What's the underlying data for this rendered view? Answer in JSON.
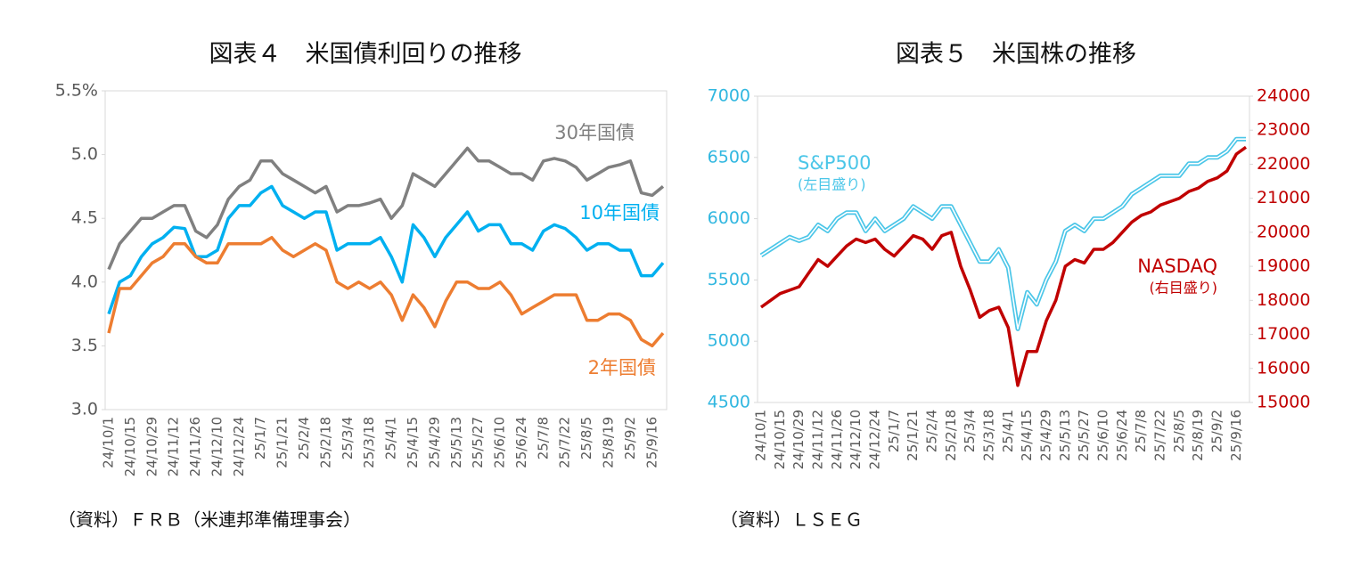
{
  "chart_data": [
    {
      "type": "line",
      "title": "図表４　米国債利回りの推移",
      "source": "（資料）ＦＲＢ（米連邦準備理事会）",
      "categories": [
        "24/10/1",
        null,
        "24/10/15",
        null,
        "24/10/29",
        null,
        "24/11/12",
        null,
        "24/11/26",
        null,
        "24/12/10",
        null,
        "24/12/24",
        null,
        "25/1/7",
        null,
        "25/1/21",
        null,
        "25/2/4",
        null,
        "25/2/18",
        null,
        "25/3/4",
        null,
        "25/3/18",
        null,
        "25/4/1",
        null,
        "25/4/15",
        null,
        "25/4/29",
        null,
        "25/5/13",
        null,
        "25/5/27",
        null,
        "25/6/10",
        null,
        "25/6/24",
        null,
        "25/7/8",
        null,
        "25/7/22",
        null,
        "25/8/5",
        null,
        "25/8/19",
        null,
        "25/9/2",
        null,
        "25/9/16",
        null
      ],
      "ylim": [
        3.0,
        5.5
      ],
      "yticks": [
        {
          "value": 3.0,
          "label": "3.0"
        },
        {
          "value": 3.5,
          "label": "3.5"
        },
        {
          "value": 4.0,
          "label": "4.0"
        },
        {
          "value": 4.5,
          "label": "4.5"
        },
        {
          "value": 5.0,
          "label": "5.0"
        },
        {
          "value": 5.5,
          "label": "5.5%"
        }
      ],
      "ytick_color": "#595959",
      "grid": false,
      "series": [
        {
          "name": "30年国債",
          "color": "#808080",
          "values": [
            4.1,
            4.3,
            4.4,
            4.5,
            4.5,
            4.55,
            4.6,
            4.6,
            4.4,
            4.35,
            4.45,
            4.65,
            4.75,
            4.8,
            4.95,
            4.95,
            4.85,
            4.8,
            4.75,
            4.7,
            4.75,
            4.55,
            4.6,
            4.6,
            4.62,
            4.65,
            4.5,
            4.6,
            4.85,
            4.8,
            4.75,
            4.85,
            4.95,
            5.05,
            4.95,
            4.95,
            4.9,
            4.85,
            4.85,
            4.8,
            4.95,
            4.97,
            4.95,
            4.9,
            4.8,
            4.85,
            4.9,
            4.92,
            4.95,
            4.7,
            4.68,
            4.75
          ]
        },
        {
          "name": "10年国債",
          "color": "#00b0f0",
          "values": [
            3.75,
            4.0,
            4.05,
            4.2,
            4.3,
            4.35,
            4.43,
            4.42,
            4.2,
            4.2,
            4.25,
            4.5,
            4.6,
            4.6,
            4.7,
            4.75,
            4.6,
            4.55,
            4.5,
            4.55,
            4.55,
            4.25,
            4.3,
            4.3,
            4.3,
            4.35,
            4.2,
            4.0,
            4.45,
            4.35,
            4.2,
            4.35,
            4.45,
            4.55,
            4.4,
            4.45,
            4.45,
            4.3,
            4.3,
            4.25,
            4.4,
            4.45,
            4.42,
            4.35,
            4.25,
            4.3,
            4.3,
            4.25,
            4.25,
            4.05,
            4.05,
            4.15
          ]
        },
        {
          "name": "2年国債",
          "color": "#ed7d31",
          "values": [
            3.6,
            3.95,
            3.95,
            4.05,
            4.15,
            4.2,
            4.3,
            4.3,
            4.2,
            4.15,
            4.15,
            4.3,
            4.3,
            4.3,
            4.3,
            4.35,
            4.25,
            4.2,
            4.25,
            4.3,
            4.25,
            4.0,
            3.95,
            4.0,
            3.95,
            4.0,
            3.9,
            3.7,
            3.9,
            3.8,
            3.65,
            3.85,
            4.0,
            4.0,
            3.95,
            3.95,
            4.0,
            3.9,
            3.75,
            3.8,
            3.85,
            3.9,
            3.9,
            3.9,
            3.7,
            3.7,
            3.75,
            3.75,
            3.7,
            3.55,
            3.5,
            3.6
          ]
        }
      ]
    },
    {
      "type": "line",
      "title": "図表５　米国株の推移",
      "source": "（資料）ＬＳＥＧ",
      "categories": [
        "24/10/1",
        null,
        "24/10/15",
        null,
        "24/10/29",
        null,
        "24/11/12",
        null,
        "24/11/26",
        null,
        "24/12/10",
        null,
        "24/12/24",
        null,
        "25/1/7",
        null,
        "25/1/21",
        null,
        "25/2/4",
        null,
        "25/2/18",
        null,
        "25/3/4",
        null,
        "25/3/18",
        null,
        "25/4/1",
        null,
        "25/4/15",
        null,
        "25/4/29",
        null,
        "25/5/13",
        null,
        "25/5/27",
        null,
        "25/6/10",
        null,
        "25/6/24",
        null,
        "25/7/8",
        null,
        "25/7/22",
        null,
        "25/8/5",
        null,
        "25/8/19",
        null,
        "25/9/2",
        null,
        "25/9/16",
        null
      ],
      "ylim": [
        4500,
        7000
      ],
      "yticks": [
        4500,
        5000,
        5500,
        6000,
        6500,
        7000
      ],
      "y2lim": [
        15000,
        24000
      ],
      "y2ticks": [
        15000,
        16000,
        17000,
        18000,
        19000,
        20000,
        21000,
        22000,
        23000,
        24000
      ],
      "ytick_color": "#31b7e0",
      "y2tick_color": "#c00000",
      "grid": false,
      "series": [
        {
          "name": "S&P500",
          "note": "(左目盛り)",
          "color": "#4bc6e8",
          "outline": true,
          "values": [
            5700,
            5750,
            5800,
            5850,
            5820,
            5850,
            5950,
            5900,
            6000,
            6050,
            6050,
            5900,
            6000,
            5900,
            5950,
            6000,
            6100,
            6050,
            6000,
            6100,
            6100,
            5950,
            5800,
            5650,
            5650,
            5750,
            5600,
            5100,
            5400,
            5300,
            5500,
            5650,
            5900,
            5950,
            5900,
            6000,
            6000,
            6050,
            6100,
            6200,
            6250,
            6300,
            6350,
            6350,
            6350,
            6450,
            6450,
            6500,
            6500,
            6550,
            6650,
            6650
          ]
        },
        {
          "name": "NASDAQ",
          "note": "(右目盛り)",
          "color": "#c00000",
          "axis": "y2",
          "values": [
            17800,
            18000,
            18200,
            18300,
            18400,
            18800,
            19200,
            19000,
            19300,
            19600,
            19800,
            19700,
            19800,
            19500,
            19300,
            19600,
            19900,
            19800,
            19500,
            19900,
            20000,
            19000,
            18300,
            17500,
            17700,
            17800,
            17200,
            15500,
            16500,
            16500,
            17400,
            18000,
            19000,
            19200,
            19100,
            19500,
            19500,
            19700,
            20000,
            20300,
            20500,
            20600,
            20800,
            20900,
            21000,
            21200,
            21300,
            21500,
            21600,
            21800,
            22300,
            22500
          ]
        }
      ]
    }
  ]
}
